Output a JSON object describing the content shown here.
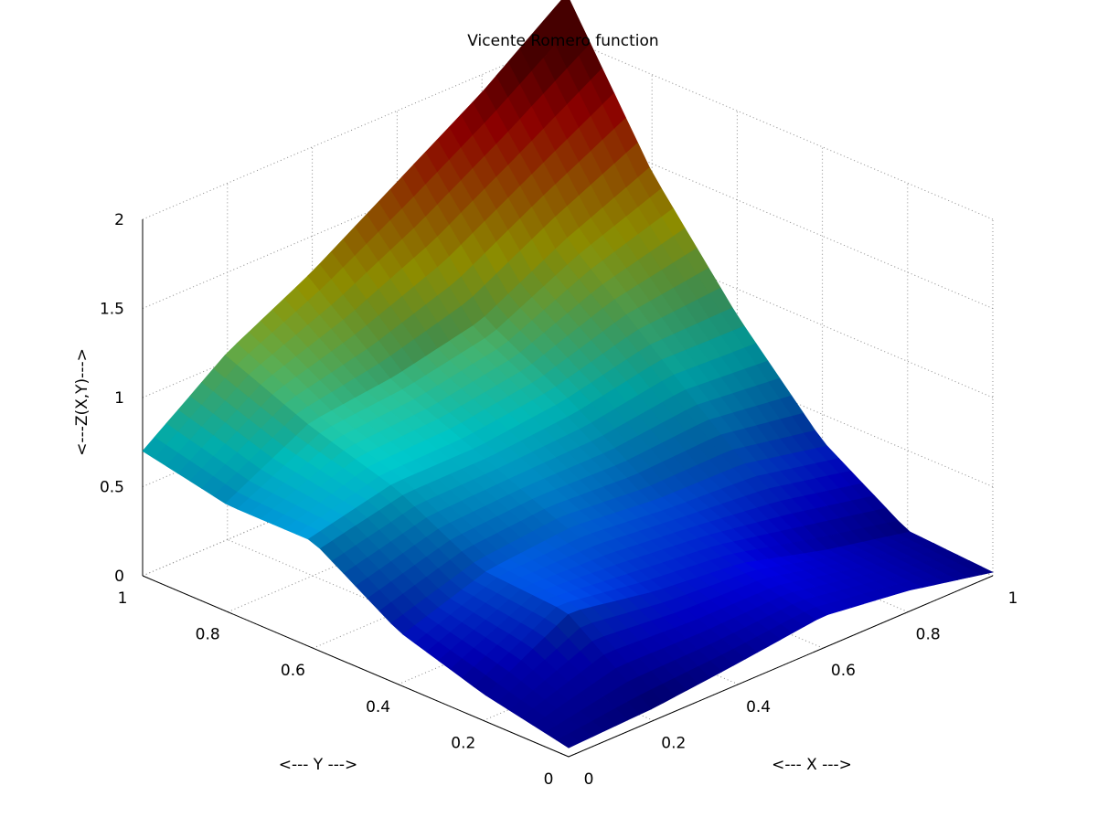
{
  "chart_data": {
    "type": "surface3d",
    "title": "Vicente Romero function",
    "xlabel": "<--- X --->",
    "ylabel": "<--- Y --->",
    "zlabel": "<---Z(X,Y)--->",
    "xlim": [
      0,
      1
    ],
    "ylim": [
      0,
      1
    ],
    "zlim": [
      0,
      2
    ],
    "x_ticks": [
      "0",
      "0.2",
      "0.4",
      "0.6",
      "0.8",
      "1"
    ],
    "y_ticks": [
      "0",
      "0.2",
      "0.4",
      "0.6",
      "0.8",
      "1"
    ],
    "z_ticks": [
      "0",
      "0.5",
      "1",
      "1.5",
      "2"
    ],
    "grid": true,
    "colormap": "jet",
    "x": [
      0,
      0.2,
      0.4,
      0.6,
      0.8,
      1
    ],
    "y": [
      0,
      0.2,
      0.4,
      0.6,
      0.8,
      1
    ],
    "z": [
      [
        0.05,
        0.07,
        0.12,
        0.18,
        0.12,
        0.02
      ],
      [
        0.15,
        0.42,
        0.33,
        0.28,
        0.15,
        0.05
      ],
      [
        0.3,
        0.45,
        0.5,
        0.45,
        0.45,
        0.35
      ],
      [
        0.6,
        0.7,
        0.7,
        0.75,
        0.85,
        0.85
      ],
      [
        0.6,
        0.85,
        0.9,
        1.0,
        1.25,
        1.45
      ],
      [
        0.7,
        1.05,
        1.3,
        1.6,
        1.9,
        2.25
      ]
    ]
  }
}
